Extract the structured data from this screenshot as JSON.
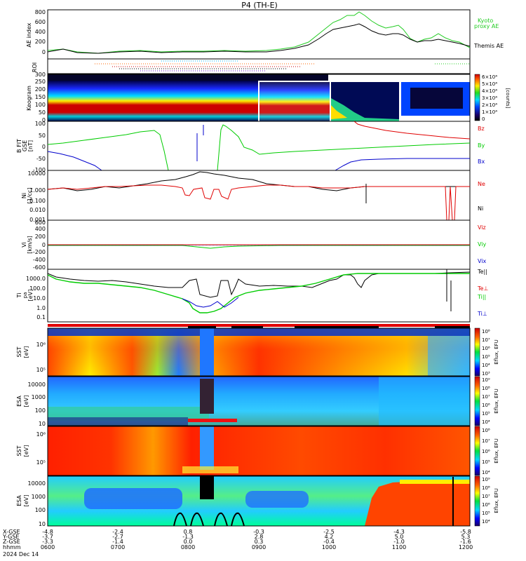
{
  "title": "P4 (TH-E)",
  "date_label": "2024 Dec 14",
  "time_axis": {
    "row_labels": [
      "X-GSE",
      "Y-GSE",
      "Z-GSE",
      "hhmm"
    ],
    "ticks": [
      "06:00",
      "07:00",
      "08:00",
      "09:00",
      "10:00",
      "11:00",
      "12:00"
    ],
    "tick_labels": [
      "0600",
      "0700",
      "0800",
      "0900",
      "1000",
      "1100",
      "1200"
    ],
    "x_gse": [
      "-4.8",
      "-2.4",
      "0.8",
      "-0.3",
      "-2.5",
      "-4.3",
      "-5.8"
    ],
    "y_gse": [
      "-3.7",
      "-2.7",
      "-1.3",
      "2.8",
      "4.2",
      "5.0",
      "5.3"
    ],
    "z_gse": [
      "-3.3",
      "-1.4",
      "0.0",
      "0.3",
      "-0.4",
      "-1.0",
      "-1.6"
    ]
  },
  "colors": {
    "black": "#000000",
    "red": "#e00000",
    "green": "#00cc00",
    "blue": "#0000cc",
    "kyoto_green": "#22cc22"
  },
  "panels": {
    "ae": {
      "ylabel": "AE index",
      "yticks": [
        "800",
        "600",
        "400",
        "200",
        "0"
      ],
      "legend": [
        "Kyoto",
        "proxy AE",
        "Themis AE"
      ]
    },
    "roi": {
      "ylabel": "ROI"
    },
    "keogram": {
      "ylabel": "Keogram",
      "yticks": [
        "300",
        "250",
        "200",
        "150",
        "100",
        "50",
        "0"
      ],
      "cbar_ticks": [
        "6×10⁴",
        "5×10⁴",
        "4×10⁴",
        "3×10⁴",
        "2×10⁴",
        "1×10⁴",
        "0"
      ],
      "cbar_label": "[counts]"
    },
    "bfield": {
      "ylabel": [
        "B FIT",
        "GSE",
        "[nT]"
      ],
      "yticks": [
        "100",
        "50",
        "0",
        "-50",
        "-100"
      ],
      "legend": [
        "Bz",
        "By",
        "Bx"
      ]
    },
    "density": {
      "ylabel": [
        "Ni",
        "[1/cc]"
      ],
      "yticks": [
        "10000",
        "1.000",
        "0.100",
        "0.010",
        "0.001"
      ],
      "yticks_full": [
        "10000",
        "1.000",
        "0.100",
        "0.010",
        "0.001"
      ],
      "legend": [
        "Ne",
        "Ni"
      ]
    },
    "velocity": {
      "ylabel": [
        "Vi",
        "[km/s]"
      ],
      "yticks": [
        "600",
        "400",
        "200",
        "0",
        "-200",
        "-400",
        "-600"
      ],
      "legend": [
        "Viz",
        "Viy",
        "Vix"
      ]
    },
    "temperature": {
      "ylabel": [
        "Ti",
        "pa",
        "[eV]"
      ],
      "yticks": [
        "1000.0",
        "100.0",
        "10.0",
        "1.0",
        "0.1"
      ],
      "legend": [
        "Te||",
        "Te⊥",
        "Ti||",
        "Ti⊥"
      ]
    },
    "sst_e": {
      "ylabel": [
        "SST",
        "[eV]"
      ],
      "yticks": [
        "10⁶",
        "10⁵"
      ],
      "cbar_ticks": [
        "10⁸",
        "10⁷",
        "10⁶",
        "10⁵",
        "10⁴",
        "10³"
      ],
      "cbar_label": "Eflux, EFU"
    },
    "esa_e": {
      "ylabel": [
        "ESA",
        "[eV]"
      ],
      "yticks": [
        "10000",
        "1000",
        "100",
        "10"
      ],
      "cbar_ticks": [
        "10⁹",
        "10⁸",
        "10⁷",
        "10⁶",
        "10⁵",
        "10⁴"
      ],
      "cbar_label": "Eflux, EFU"
    },
    "sst_i": {
      "ylabel": [
        "SST",
        "[eV]"
      ],
      "yticks": [
        "10⁶",
        "10⁵"
      ],
      "cbar_ticks": [
        "10⁸",
        "10⁷",
        "10⁶",
        "10⁵",
        "10⁴"
      ],
      "cbar_label": "Eflux, EFU"
    },
    "esa_i": {
      "ylabel": [
        "ESA",
        "[eV]"
      ],
      "yticks": [
        "10000",
        "1000",
        "100",
        "10"
      ],
      "cbar_ticks": [
        "10⁹",
        "10⁸",
        "10⁷",
        "10⁶",
        "10⁵",
        "10⁴"
      ],
      "cbar_label": "Eflux, EFU"
    }
  },
  "chart_data": [
    {
      "type": "line",
      "panel": "AE index",
      "x_hours": [
        6.0,
        6.5,
        7.0,
        7.5,
        8.0,
        8.5,
        9.0,
        9.5,
        9.75,
        10.0,
        10.1,
        10.25,
        10.5,
        10.75,
        11.0,
        11.5,
        12.0
      ],
      "series": [
        {
          "name": "Themis AE",
          "values": [
            120,
            90,
            100,
            110,
            130,
            120,
            140,
            180,
            280,
            480,
            520,
            600,
            520,
            400,
            250,
            280,
            220
          ]
        },
        {
          "name": "Kyoto proxy AE",
          "values": [
            110,
            80,
            90,
            100,
            120,
            110,
            130,
            190,
            300,
            560,
            680,
            760,
            620,
            520,
            380,
            400,
            300
          ]
        }
      ],
      "ylim": [
        0,
        800
      ]
    },
    {
      "type": "line",
      "panel": "B FIT GSE",
      "x_hours": [
        6.0,
        6.5,
        7.0,
        7.5,
        7.8,
        8.3,
        8.7,
        9.0,
        9.5,
        10.0,
        10.25,
        10.5,
        11.0,
        11.5,
        12.0
      ],
      "series": [
        {
          "name": "Bz",
          "values": [
            null,
            null,
            null,
            null,
            null,
            null,
            null,
            null,
            null,
            130,
            95,
            80,
            55,
            35,
            20
          ]
        },
        {
          "name": "By",
          "values": [
            0,
            30,
            55,
            75,
            80,
            60,
            50,
            40,
            -5,
            -20,
            -10,
            -5,
            0,
            5,
            10
          ]
        },
        {
          "name": "Bx",
          "values": [
            -30,
            -40,
            -70,
            -100,
            null,
            null,
            null,
            null,
            null,
            -90,
            -60,
            -45,
            -45,
            -40,
            -40
          ]
        }
      ],
      "ylim": [
        -100,
        100
      ]
    },
    {
      "type": "line",
      "panel": "Ni",
      "x_hours": [
        6.0,
        6.5,
        7.0,
        7.5,
        7.8,
        8.0,
        8.5,
        9.0,
        9.5,
        10.0,
        10.5,
        11.0,
        11.5,
        12.0
      ],
      "series": [
        {
          "name": "Ni",
          "values": [
            0.5,
            0.7,
            1.5,
            4,
            8,
            10,
            8,
            2,
            1.5,
            1.2,
            1.5,
            1.2,
            1.0,
            1.0
          ]
        },
        {
          "name": "Ne",
          "values": [
            0.6,
            0.8,
            1.5,
            2,
            0.7,
            0.3,
            0.5,
            1.5,
            1.2,
            1.0,
            1.2,
            1.0,
            1.0,
            1.0
          ]
        }
      ],
      "ylim": [
        0.001,
        10000
      ],
      "scale": "log"
    },
    {
      "type": "line",
      "panel": "Vi",
      "x_hours": [
        6.0,
        8.0,
        10.0,
        12.0
      ],
      "series": [
        {
          "name": "Viz",
          "values": [
            0,
            0,
            0,
            0
          ]
        },
        {
          "name": "Viy",
          "values": [
            0,
            -20,
            0,
            0
          ]
        },
        {
          "name": "Vix",
          "values": [
            0,
            0,
            0,
            0
          ]
        }
      ],
      "ylim": [
        -600,
        600
      ]
    },
    {
      "type": "line",
      "panel": "Ti",
      "x_hours": [
        6.0,
        6.5,
        7.0,
        7.5,
        7.8,
        8.0,
        8.5,
        9.0,
        9.5,
        10.0,
        10.5,
        11.0,
        11.5,
        12.0
      ],
      "series": [
        {
          "name": "Te||",
          "values": [
            1200,
            400,
            250,
            80,
            10,
            10,
            200,
            100,
            40,
            600,
            1500,
            1800,
            1800,
            1900
          ]
        },
        {
          "name": "Ti||",
          "values": [
            800,
            150,
            100,
            40,
            5,
            1,
            20,
            30,
            60,
            400,
            1500,
            1600,
            1600,
            1600
          ]
        },
        {
          "name": "Ti⊥",
          "values": [
            800,
            200,
            100,
            40,
            5,
            2,
            25,
            30,
            60,
            400,
            1400,
            1500,
            1500,
            1500
          ]
        }
      ],
      "ylim": [
        0.1,
        3000
      ],
      "scale": "log"
    }
  ]
}
